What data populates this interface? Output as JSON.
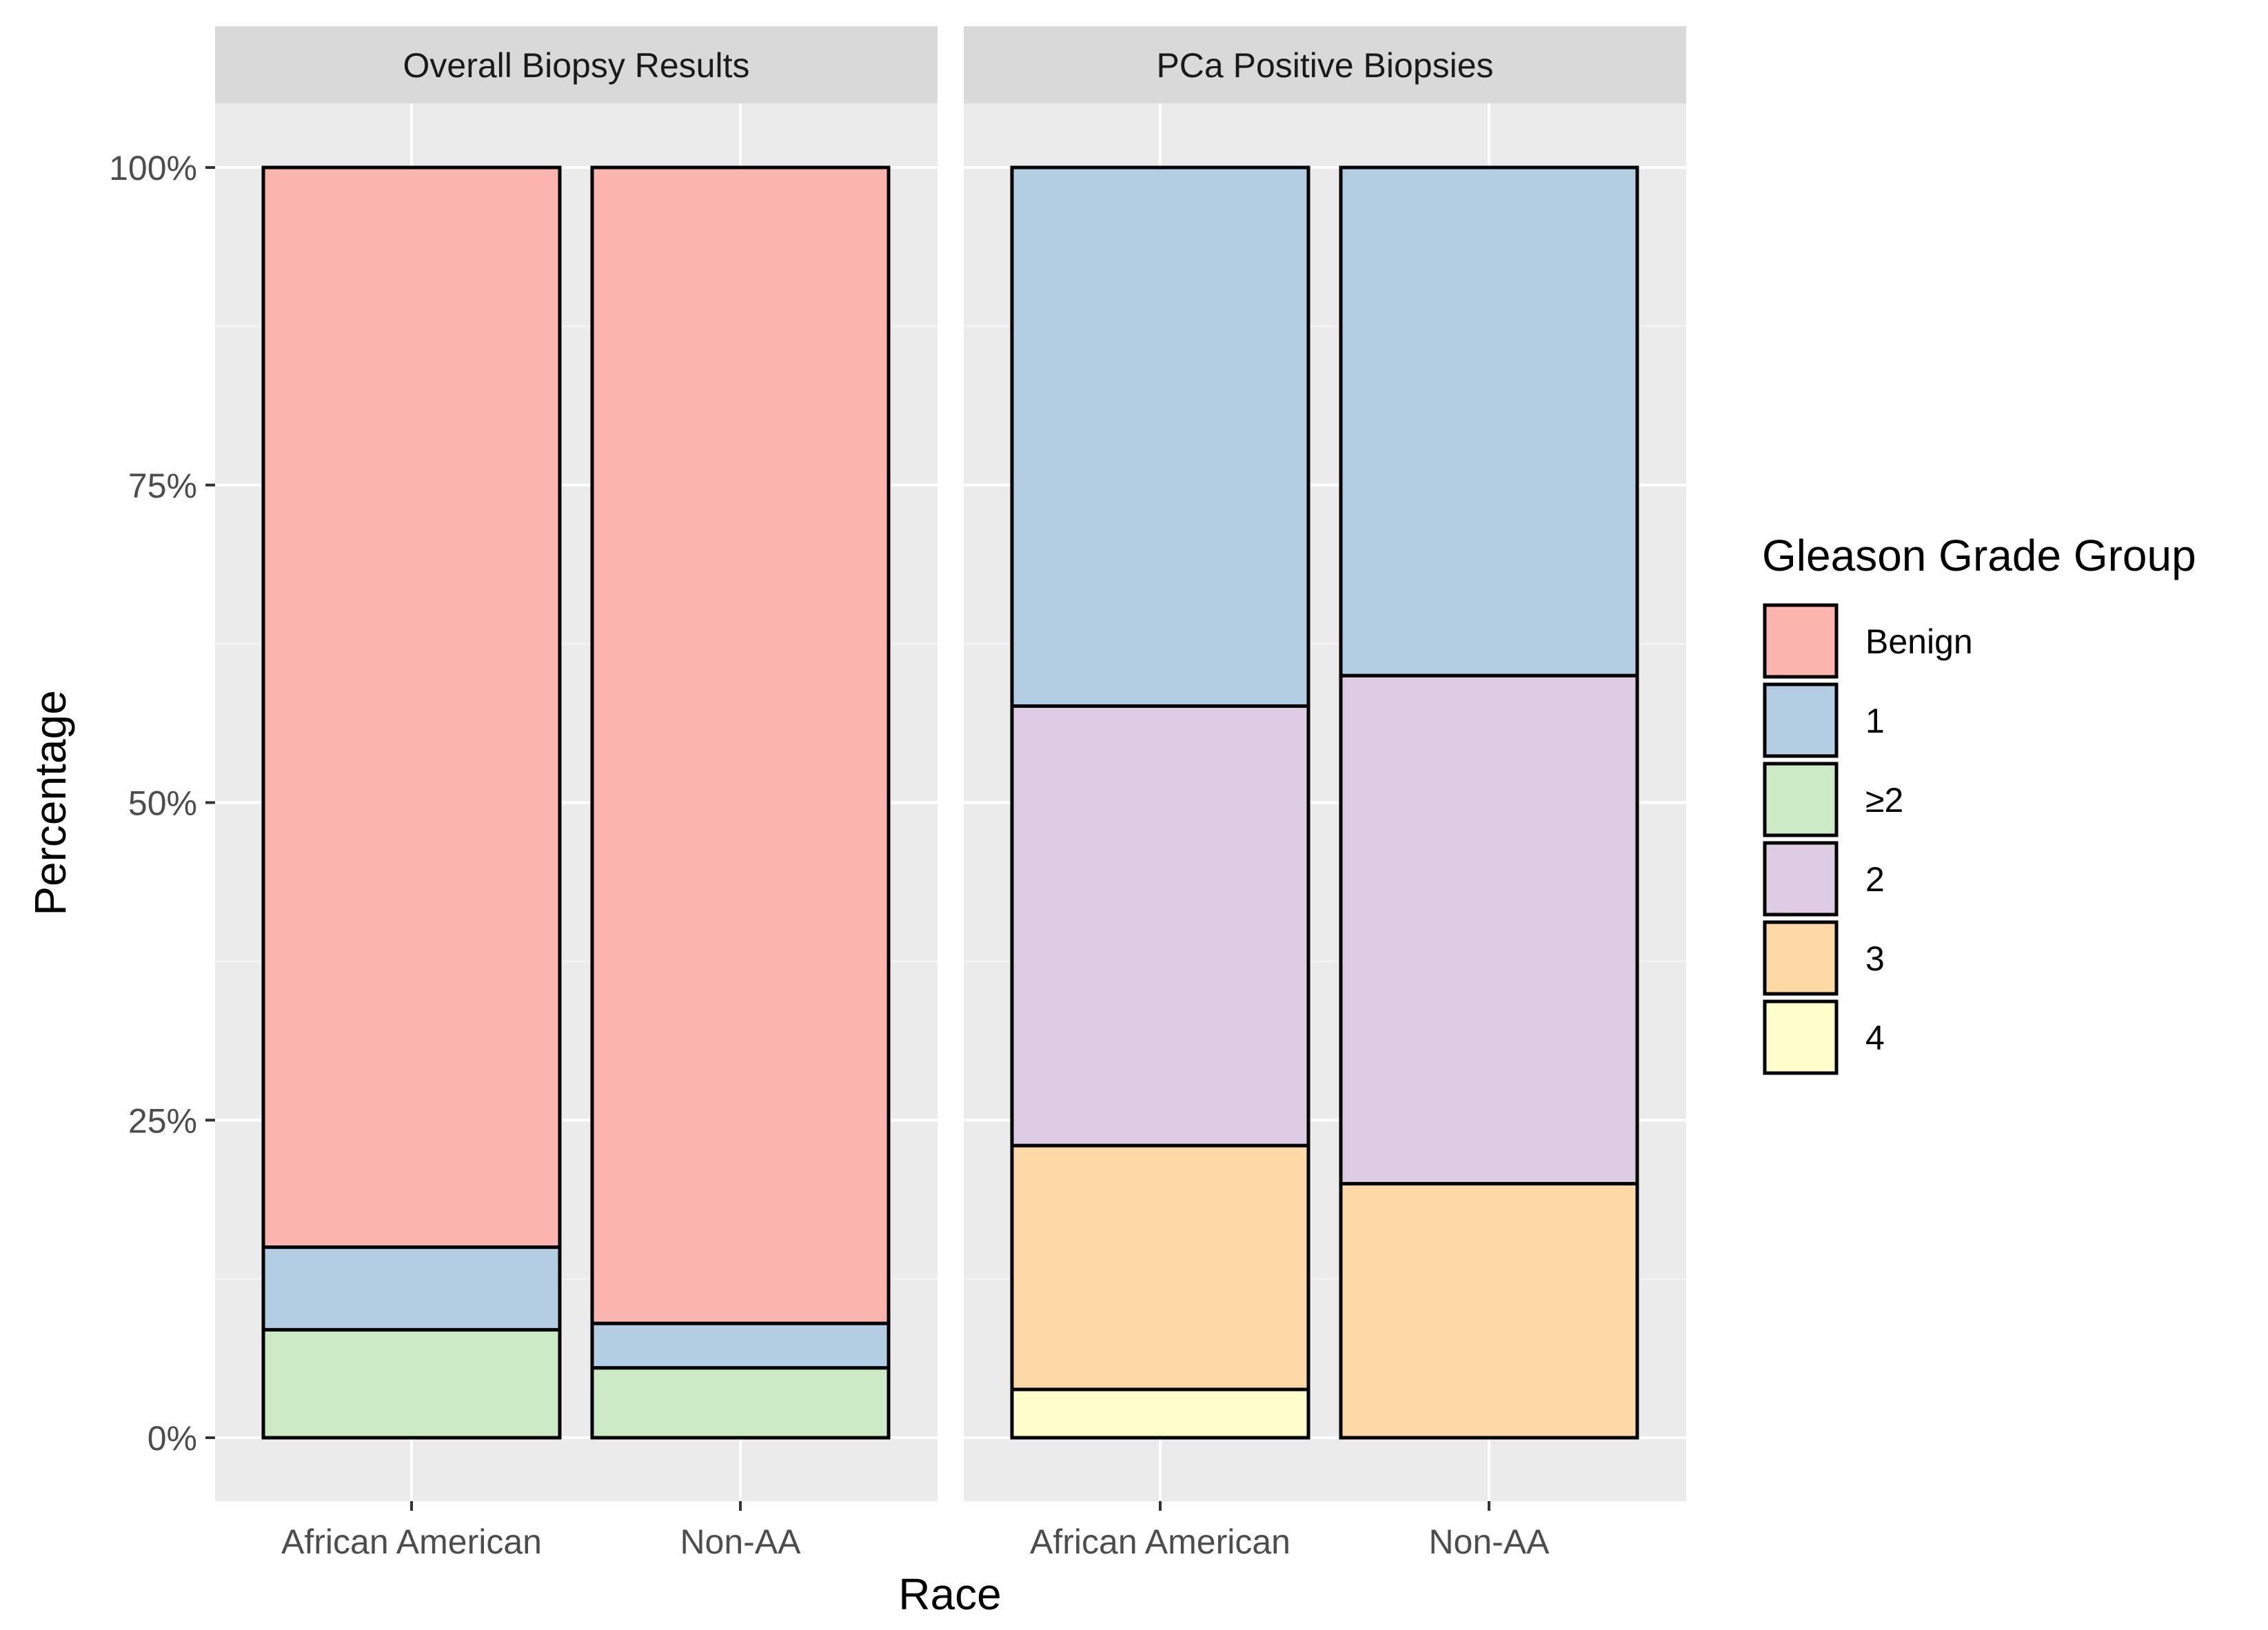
{
  "chart_data": {
    "type": "bar",
    "stacked": true,
    "xlabel": "Race",
    "ylabel": "Percentage",
    "ylim": [
      0,
      100
    ],
    "y_ticks": [
      "0%",
      "25%",
      "50%",
      "75%",
      "100%"
    ],
    "y_tick_values": [
      0,
      25,
      50,
      75,
      100
    ],
    "legend": {
      "title": "Gleason Grade Group",
      "position": "right",
      "items": [
        {
          "label": "Benign",
          "color": "#FBB4AE"
        },
        {
          "label": "1",
          "color": "#B3CDE3"
        },
        {
          "label": "≥2",
          "color": "#CCEBC5"
        },
        {
          "label": "2",
          "color": "#DECBE4"
        },
        {
          "label": "3",
          "color": "#FED9A6"
        },
        {
          "label": "4",
          "color": "#FFFFCC"
        }
      ]
    },
    "panels": [
      {
        "title": "Overall Biopsy Results",
        "categories": [
          "African American",
          "Non-AA"
        ],
        "series": [
          {
            "name": "≥2",
            "color": "#CCEBC5",
            "values": [
              8.5,
              5.5
            ]
          },
          {
            "name": "1",
            "color": "#B3CDE3",
            "values": [
              6.5,
              3.5
            ]
          },
          {
            "name": "Benign",
            "color": "#FBB4AE",
            "values": [
              85.0,
              91.0
            ]
          }
        ]
      },
      {
        "title": "PCa Positive Biopsies",
        "categories": [
          "African American",
          "Non-AA"
        ],
        "series": [
          {
            "name": "4",
            "color": "#FFFFCC",
            "values": [
              3.8,
              0
            ]
          },
          {
            "name": "3",
            "color": "#FED9A6",
            "values": [
              19.2,
              20.0
            ]
          },
          {
            "name": "2",
            "color": "#DECBE4",
            "values": [
              34.6,
              40.0
            ]
          },
          {
            "name": "1",
            "color": "#B3CDE3",
            "values": [
              42.4,
              40.0
            ]
          }
        ]
      }
    ]
  }
}
